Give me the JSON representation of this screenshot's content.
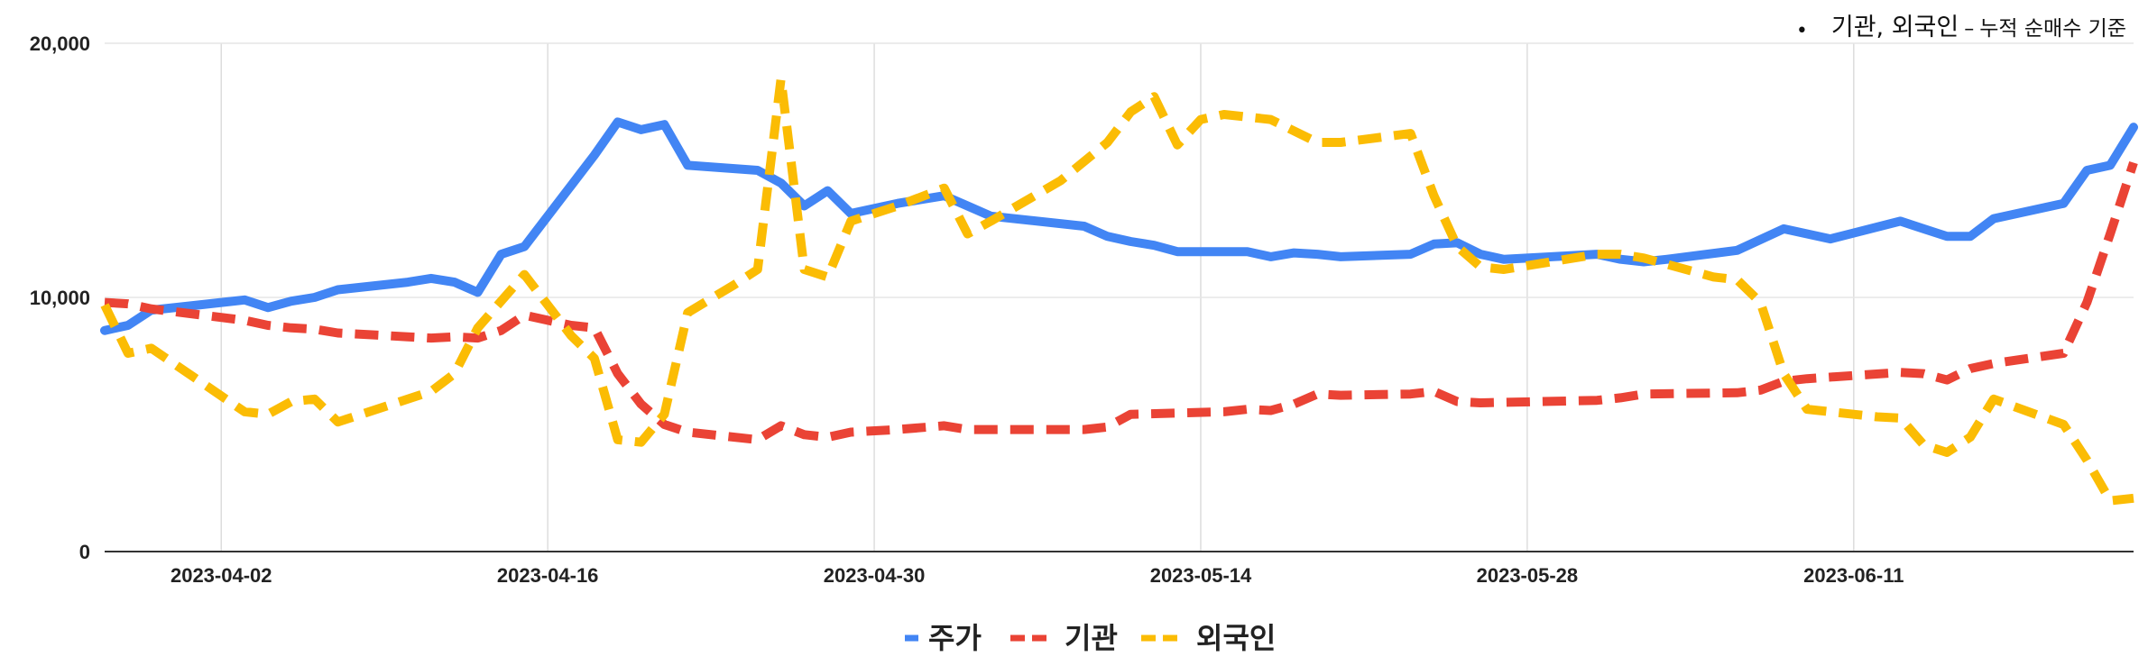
{
  "note": {
    "bullet": "•",
    "main": "기관, 외국인",
    "dash": "–",
    "sub": "누적 순매수 기준"
  },
  "chart_data": {
    "type": "line",
    "title": "",
    "xlabel": "",
    "ylabel": "",
    "x_start": "2023-03-28",
    "x_end": "2023-06-23",
    "x_ticks": [
      "2023-04-02",
      "2023-04-16",
      "2023-04-30",
      "2023-05-14",
      "2023-05-28",
      "2023-06-11"
    ],
    "y_ticks": [
      0,
      10000,
      20000
    ],
    "y_tick_labels": [
      "0",
      "10,000",
      "20,000"
    ],
    "ylim": [
      0,
      20000
    ],
    "grid": true,
    "legend": "bottom",
    "series": [
      {
        "name": "주가",
        "color": "#4285F4",
        "style": "solid",
        "points": [
          [
            "2023-03-28",
            8700
          ],
          [
            "2023-03-29",
            8900
          ],
          [
            "2023-03-30",
            9500
          ],
          [
            "2023-04-01",
            9700
          ],
          [
            "2023-04-03",
            9900
          ],
          [
            "2023-04-04",
            9600
          ],
          [
            "2023-04-05",
            9850
          ],
          [
            "2023-04-06",
            10000
          ],
          [
            "2023-04-07",
            10300
          ],
          [
            "2023-04-10",
            10600
          ],
          [
            "2023-04-11",
            10750
          ],
          [
            "2023-04-12",
            10600
          ],
          [
            "2023-04-13",
            10200
          ],
          [
            "2023-04-14",
            11700
          ],
          [
            "2023-04-15",
            12000
          ],
          [
            "2023-04-18",
            15600
          ],
          [
            "2023-04-19",
            16900
          ],
          [
            "2023-04-20",
            16600
          ],
          [
            "2023-04-21",
            16800
          ],
          [
            "2023-04-22",
            15200
          ],
          [
            "2023-04-25",
            15000
          ],
          [
            "2023-04-26",
            14500
          ],
          [
            "2023-04-27",
            13600
          ],
          [
            "2023-04-28",
            14200
          ],
          [
            "2023-04-29",
            13300
          ],
          [
            "2023-05-01",
            13700
          ],
          [
            "2023-05-03",
            14000
          ],
          [
            "2023-05-04",
            13600
          ],
          [
            "2023-05-05",
            13200
          ],
          [
            "2023-05-09",
            12800
          ],
          [
            "2023-05-10",
            12400
          ],
          [
            "2023-05-11",
            12200
          ],
          [
            "2023-05-12",
            12050
          ],
          [
            "2023-05-13",
            11800
          ],
          [
            "2023-05-15",
            11800
          ],
          [
            "2023-05-16",
            11800
          ],
          [
            "2023-05-17",
            11600
          ],
          [
            "2023-05-18",
            11750
          ],
          [
            "2023-05-19",
            11700
          ],
          [
            "2023-05-20",
            11600
          ],
          [
            "2023-05-23",
            11700
          ],
          [
            "2023-05-24",
            12100
          ],
          [
            "2023-05-25",
            12150
          ],
          [
            "2023-05-26",
            11700
          ],
          [
            "2023-05-27",
            11500
          ],
          [
            "2023-05-31",
            11700
          ],
          [
            "2023-06-01",
            11500
          ],
          [
            "2023-06-02",
            11400
          ],
          [
            "2023-06-03",
            11500
          ],
          [
            "2023-06-06",
            11850
          ],
          [
            "2023-06-08",
            12700
          ],
          [
            "2023-06-10",
            12300
          ],
          [
            "2023-06-13",
            13000
          ],
          [
            "2023-06-14",
            12700
          ],
          [
            "2023-06-15",
            12400
          ],
          [
            "2023-06-16",
            12400
          ],
          [
            "2023-06-17",
            13100
          ],
          [
            "2023-06-20",
            13700
          ],
          [
            "2023-06-21",
            15000
          ],
          [
            "2023-06-22",
            15200
          ],
          [
            "2023-06-23",
            16700
          ]
        ]
      },
      {
        "name": "기관",
        "color": "#EA4335",
        "style": "dashed",
        "points": [
          [
            "2023-03-28",
            9800
          ],
          [
            "2023-03-29",
            9750
          ],
          [
            "2023-03-30",
            9550
          ],
          [
            "2023-04-03",
            9100
          ],
          [
            "2023-04-04",
            8900
          ],
          [
            "2023-04-05",
            8800
          ],
          [
            "2023-04-06",
            8750
          ],
          [
            "2023-04-07",
            8600
          ],
          [
            "2023-04-10",
            8450
          ],
          [
            "2023-04-11",
            8400
          ],
          [
            "2023-04-12",
            8450
          ],
          [
            "2023-04-13",
            8400
          ],
          [
            "2023-04-14",
            8700
          ],
          [
            "2023-04-15",
            9300
          ],
          [
            "2023-04-16",
            9100
          ],
          [
            "2023-04-17",
            8900
          ],
          [
            "2023-04-18",
            8800
          ],
          [
            "2023-04-19",
            7000
          ],
          [
            "2023-04-20",
            5800
          ],
          [
            "2023-04-21",
            5000
          ],
          [
            "2023-04-22",
            4700
          ],
          [
            "2023-04-25",
            4400
          ],
          [
            "2023-04-26",
            4950
          ],
          [
            "2023-04-27",
            4600
          ],
          [
            "2023-04-28",
            4500
          ],
          [
            "2023-04-29",
            4700
          ],
          [
            "2023-05-01",
            4800
          ],
          [
            "2023-05-03",
            4950
          ],
          [
            "2023-05-04",
            4800
          ],
          [
            "2023-05-09",
            4800
          ],
          [
            "2023-05-10",
            4900
          ],
          [
            "2023-05-11",
            5400
          ],
          [
            "2023-05-13",
            5450
          ],
          [
            "2023-05-15",
            5500
          ],
          [
            "2023-05-16",
            5600
          ],
          [
            "2023-05-17",
            5550
          ],
          [
            "2023-05-18",
            5800
          ],
          [
            "2023-05-19",
            6200
          ],
          [
            "2023-05-20",
            6150
          ],
          [
            "2023-05-23",
            6200
          ],
          [
            "2023-05-24",
            6300
          ],
          [
            "2023-05-25",
            5900
          ],
          [
            "2023-05-26",
            5850
          ],
          [
            "2023-05-31",
            5950
          ],
          [
            "2023-06-01",
            6050
          ],
          [
            "2023-06-02",
            6200
          ],
          [
            "2023-06-06",
            6250
          ],
          [
            "2023-06-07",
            6350
          ],
          [
            "2023-06-08",
            6700
          ],
          [
            "2023-06-09",
            6800
          ],
          [
            "2023-06-13",
            7050
          ],
          [
            "2023-06-14",
            7000
          ],
          [
            "2023-06-15",
            6750
          ],
          [
            "2023-06-16",
            7200
          ],
          [
            "2023-06-17",
            7400
          ],
          [
            "2023-06-20",
            7800
          ],
          [
            "2023-06-21",
            9800
          ],
          [
            "2023-06-22",
            12500
          ],
          [
            "2023-06-23",
            15300
          ]
        ]
      },
      {
        "name": "외국인",
        "color": "#FBBC04",
        "style": "dashed",
        "points": [
          [
            "2023-03-28",
            9700
          ],
          [
            "2023-03-29",
            7800
          ],
          [
            "2023-03-30",
            8000
          ],
          [
            "2023-04-03",
            5500
          ],
          [
            "2023-04-04",
            5400
          ],
          [
            "2023-04-05",
            5900
          ],
          [
            "2023-04-06",
            6000
          ],
          [
            "2023-04-07",
            5100
          ],
          [
            "2023-04-10",
            6000
          ],
          [
            "2023-04-11",
            6300
          ],
          [
            "2023-04-12",
            7000
          ],
          [
            "2023-04-13",
            8800
          ],
          [
            "2023-04-15",
            10900
          ],
          [
            "2023-04-16",
            9700
          ],
          [
            "2023-04-17",
            8500
          ],
          [
            "2023-04-18",
            7600
          ],
          [
            "2023-04-19",
            4400
          ],
          [
            "2023-04-20",
            4300
          ],
          [
            "2023-04-21",
            5400
          ],
          [
            "2023-04-22",
            9400
          ],
          [
            "2023-04-24",
            10500
          ],
          [
            "2023-04-25",
            11100
          ],
          [
            "2023-04-26",
            18600
          ],
          [
            "2023-04-27",
            11100
          ],
          [
            "2023-04-28",
            10800
          ],
          [
            "2023-04-29",
            13000
          ],
          [
            "2023-05-01",
            13600
          ],
          [
            "2023-05-03",
            14300
          ],
          [
            "2023-05-04",
            12500
          ],
          [
            "2023-05-05",
            13000
          ],
          [
            "2023-05-08",
            14600
          ],
          [
            "2023-05-10",
            16100
          ],
          [
            "2023-05-11",
            17300
          ],
          [
            "2023-05-12",
            17900
          ],
          [
            "2023-05-13",
            16000
          ],
          [
            "2023-05-14",
            17000
          ],
          [
            "2023-05-15",
            17200
          ],
          [
            "2023-05-17",
            17000
          ],
          [
            "2023-05-19",
            16100
          ],
          [
            "2023-05-20",
            16100
          ],
          [
            "2023-05-23",
            16450
          ],
          [
            "2023-05-24",
            14000
          ],
          [
            "2023-05-25",
            12000
          ],
          [
            "2023-05-26",
            11200
          ],
          [
            "2023-05-27",
            11100
          ],
          [
            "2023-05-31",
            11700
          ],
          [
            "2023-06-01",
            11700
          ],
          [
            "2023-06-02",
            11550
          ],
          [
            "2023-06-05",
            10800
          ],
          [
            "2023-06-06",
            10700
          ],
          [
            "2023-06-07",
            9800
          ],
          [
            "2023-06-08",
            7000
          ],
          [
            "2023-06-09",
            5600
          ],
          [
            "2023-06-12",
            5300
          ],
          [
            "2023-06-13",
            5250
          ],
          [
            "2023-06-14",
            4200
          ],
          [
            "2023-06-15",
            3900
          ],
          [
            "2023-06-16",
            4500
          ],
          [
            "2023-06-17",
            6000
          ],
          [
            "2023-06-20",
            5000
          ],
          [
            "2023-06-21",
            3600
          ],
          [
            "2023-06-22",
            2000
          ],
          [
            "2023-06-23",
            2100
          ]
        ]
      }
    ]
  }
}
